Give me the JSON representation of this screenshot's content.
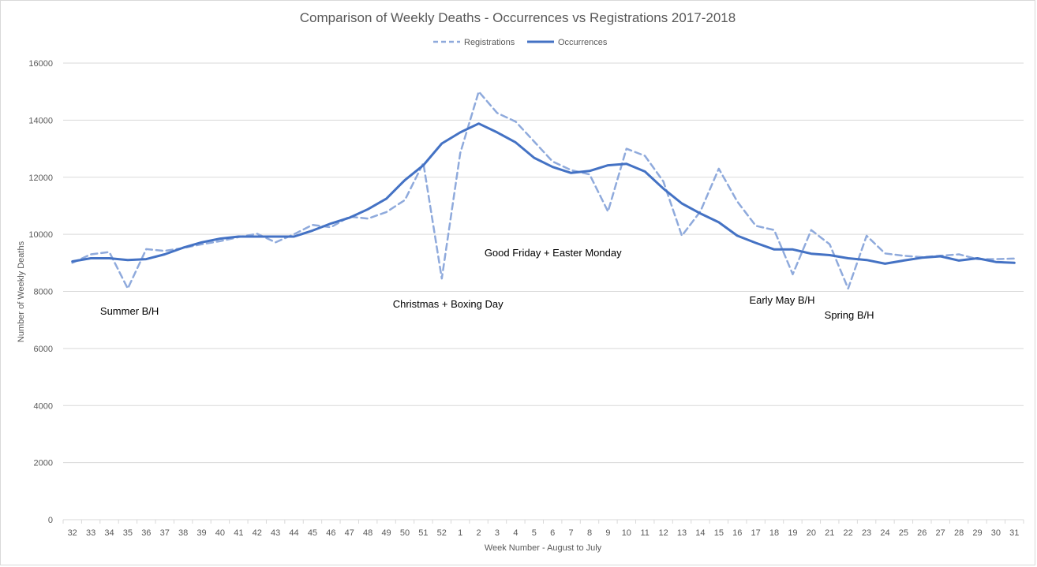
{
  "chart_data": {
    "type": "line",
    "title": "Comparison of Weekly Deaths - Occurrences vs Registrations 2017-2018",
    "xlabel": "Week Number  - August to July",
    "ylabel": "Number  of Weekly Deaths",
    "ylim": [
      0,
      16000
    ],
    "yticks": [
      0,
      2000,
      4000,
      6000,
      8000,
      10000,
      12000,
      14000,
      16000
    ],
    "grid": true,
    "legend_position": "top-center",
    "categories": [
      "32",
      "33",
      "34",
      "35",
      "36",
      "37",
      "38",
      "39",
      "40",
      "41",
      "42",
      "43",
      "44",
      "45",
      "46",
      "47",
      "48",
      "49",
      "50",
      "51",
      "52",
      "1",
      "2",
      "3",
      "4",
      "5",
      "6",
      "7",
      "8",
      "9",
      "10",
      "11",
      "12",
      "13",
      "14",
      "15",
      "16",
      "17",
      "18",
      "19",
      "20",
      "21",
      "22",
      "23",
      "24",
      "25",
      "26",
      "27",
      "28",
      "29",
      "30",
      "31"
    ],
    "series": [
      {
        "name": "Registrations",
        "style": "dashed",
        "color": "#8faadc",
        "values": [
          9000,
          9300,
          9380,
          8100,
          9480,
          9420,
          9520,
          9650,
          9760,
          9900,
          10020,
          9720,
          10000,
          10330,
          10250,
          10620,
          10550,
          10780,
          11200,
          12500,
          8450,
          12850,
          15000,
          14250,
          13950,
          13250,
          12550,
          12250,
          12100,
          10800,
          13000,
          12750,
          11850,
          9950,
          10800,
          12300,
          11150,
          10300,
          10150,
          8600,
          10150,
          9650,
          8100,
          9950,
          9330,
          9250,
          9200,
          9250,
          9300,
          9130,
          9130,
          9150
        ]
      },
      {
        "name": "Occurrences",
        "style": "solid",
        "color": "#4472c4",
        "values": [
          9050,
          9160,
          9160,
          9100,
          9130,
          9300,
          9530,
          9720,
          9850,
          9920,
          9920,
          9920,
          9920,
          10130,
          10380,
          10580,
          10880,
          11250,
          11900,
          12420,
          13180,
          13570,
          13880,
          13570,
          13220,
          12680,
          12360,
          12150,
          12220,
          12420,
          12470,
          12200,
          11600,
          11080,
          10730,
          10420,
          9950,
          9700,
          9470,
          9470,
          9320,
          9270,
          9160,
          9100,
          8970,
          9080,
          9180,
          9230,
          9080,
          9160,
          9030,
          9000
        ]
      }
    ],
    "annotations": [
      {
        "text": "Summer B/H",
        "week": "35"
      },
      {
        "text": "Christmas + Boxing Day",
        "week": "52"
      },
      {
        "text": "Good Friday + Easter Monday",
        "week": "10"
      },
      {
        "text": "Early May B/H",
        "week": "19"
      },
      {
        "text": "Spring B/H",
        "week": "22"
      }
    ]
  }
}
